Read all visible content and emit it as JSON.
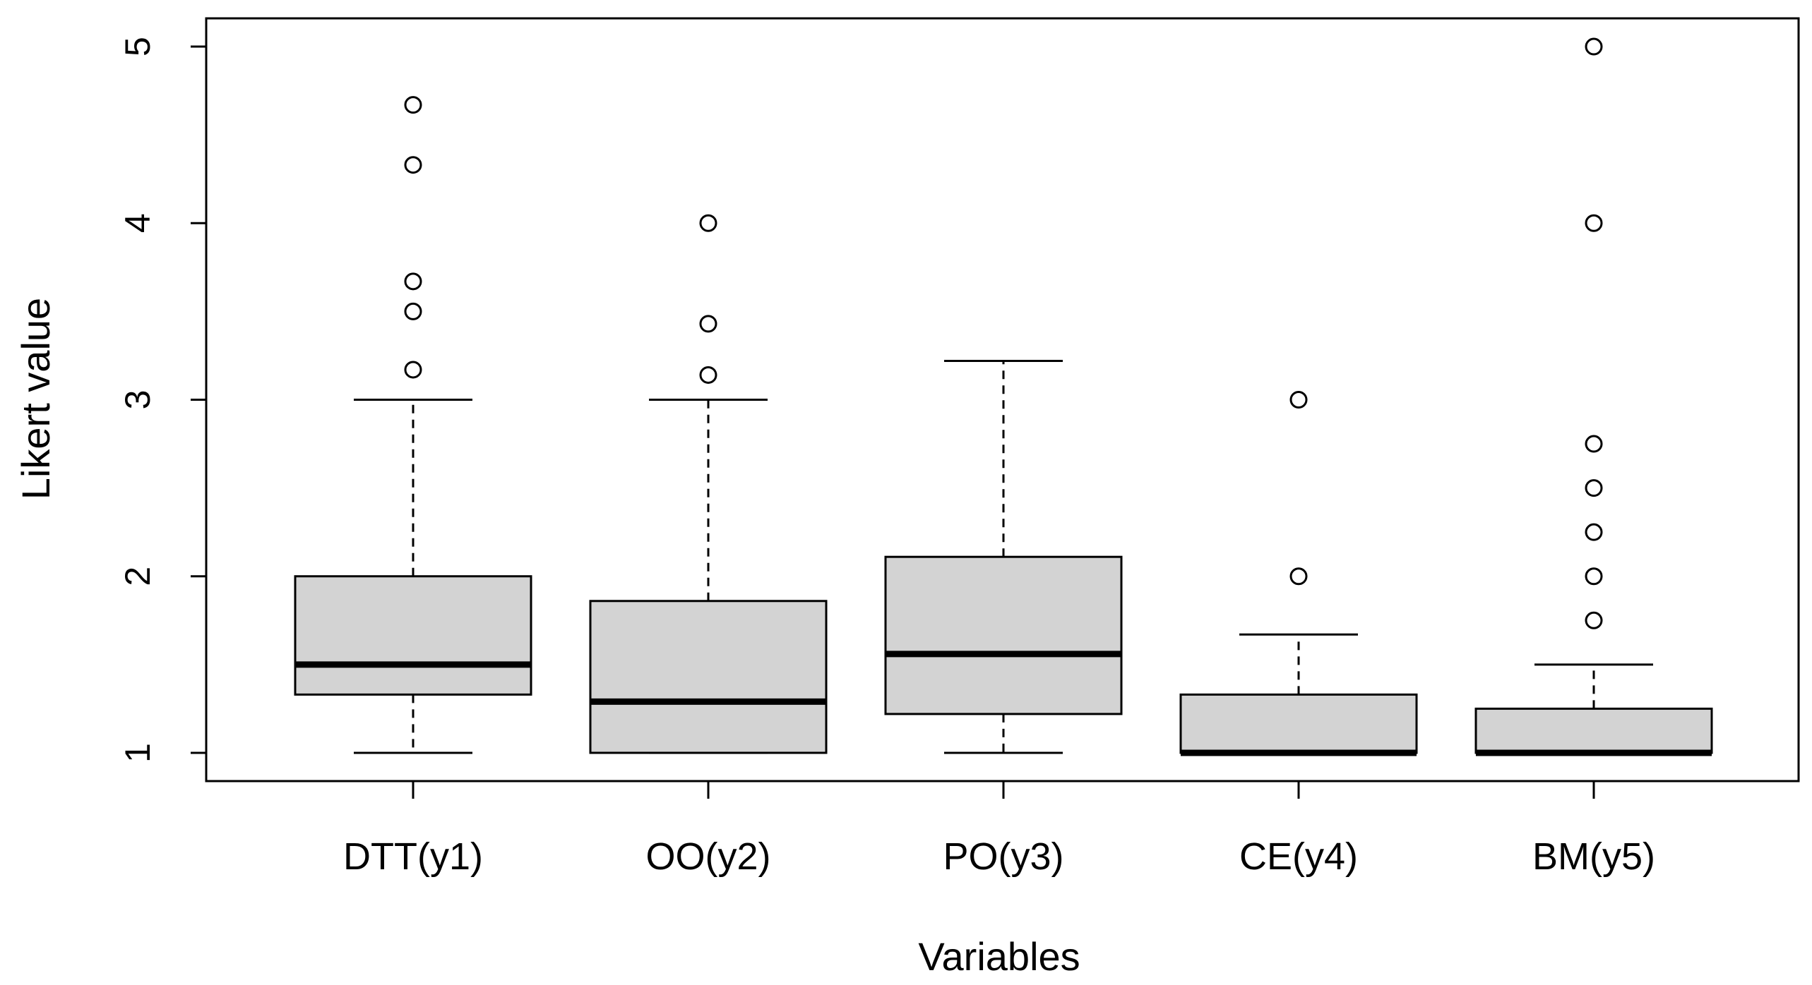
{
  "chart_data": {
    "type": "boxplot",
    "title": "",
    "xlabel": "Variables",
    "ylabel": "Likert value",
    "ylim": [
      0.84,
      5.16
    ],
    "yticks": [
      1,
      2,
      3,
      4,
      5
    ],
    "categories": [
      "DTT(y1)",
      "OO(y2)",
      "PO(y3)",
      "CE(y4)",
      "BM(y5)"
    ],
    "boxes": [
      {
        "name": "DTT(y1)",
        "whisker_low": 1,
        "q1": 1.33,
        "median": 1.5,
        "q3": 2.0,
        "whisker_high": 3.0,
        "outliers": [
          3.17,
          3.5,
          3.67,
          4.33,
          4.67
        ]
      },
      {
        "name": "OO(y2)",
        "whisker_low": 1,
        "q1": 1.0,
        "median": 1.29,
        "q3": 1.86,
        "whisker_high": 3.0,
        "outliers": [
          3.14,
          3.43,
          4.0
        ]
      },
      {
        "name": "PO(y3)",
        "whisker_low": 1,
        "q1": 1.22,
        "median": 1.56,
        "q3": 2.11,
        "whisker_high": 3.22,
        "outliers": []
      },
      {
        "name": "CE(y4)",
        "whisker_low": 1,
        "q1": 1.0,
        "median": 1.0,
        "q3": 1.33,
        "whisker_high": 1.67,
        "outliers": [
          2.0,
          3.0
        ]
      },
      {
        "name": "BM(y5)",
        "whisker_low": 1,
        "q1": 1.0,
        "median": 1.0,
        "q3": 1.25,
        "whisker_high": 1.5,
        "outliers": [
          1.75,
          2.0,
          2.25,
          2.5,
          2.75,
          4.0,
          5.0
        ]
      }
    ],
    "colors": {
      "box_fill": "#d3d3d3",
      "line": "#000000",
      "background": "#ffffff"
    }
  }
}
